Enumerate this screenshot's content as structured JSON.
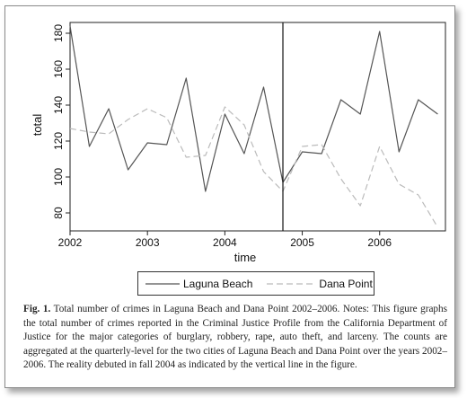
{
  "chart_data": {
    "type": "line",
    "xlabel": "time",
    "ylabel": "total",
    "xlim": [
      2002,
      2006.85
    ],
    "ylim": [
      70,
      186
    ],
    "x_ticks": [
      2002,
      2003,
      2004,
      2005,
      2006
    ],
    "y_ticks": [
      80,
      100,
      120,
      140,
      160,
      180
    ],
    "vertical_line_at": 2004.75,
    "legend_position": "bottom-center",
    "series": [
      {
        "name": "Laguna Beach",
        "style": "solid",
        "color": "#555555",
        "x": [
          2002,
          2002.25,
          2002.5,
          2002.75,
          2003,
          2003.25,
          2003.5,
          2003.75,
          2004,
          2004.25,
          2004.5,
          2004.75,
          2005,
          2005.25,
          2005.5,
          2005.75,
          2006,
          2006.25,
          2006.5,
          2006.75
        ],
        "values": [
          184,
          117,
          138,
          104,
          119,
          118,
          155,
          92,
          135,
          113,
          150,
          97,
          114,
          113,
          143,
          135,
          181,
          114,
          143,
          135
        ]
      },
      {
        "name": "Dana Point",
        "style": "dashed",
        "color": "#bbbbbb",
        "x": [
          2002,
          2002.25,
          2002.5,
          2002.75,
          2003,
          2003.25,
          2003.5,
          2003.75,
          2004,
          2004.25,
          2004.5,
          2004.75,
          2005,
          2005.25,
          2005.5,
          2005.75,
          2006,
          2006.25,
          2006.5,
          2006.75
        ],
        "values": [
          127,
          125,
          124,
          132,
          138,
          133,
          111,
          112,
          139,
          129,
          103,
          92,
          117,
          118,
          99,
          84,
          117,
          96,
          90,
          72
        ]
      }
    ]
  },
  "caption": {
    "fig_label": "Fig. 1.",
    "text": "Total number of crimes in Laguna Beach and Dana Point 2002–2006. Notes: This figure graphs the total number of crimes reported in the Criminal Justice Profile from the California Department of Justice for the major categories of burglary, robbery, rape, auto theft, and larceny. The counts are aggregated at the quarterly-level for the two cities of Laguna Beach and Dana Point over the years 2002–2006. The reality debuted in fall 2004 as indicated by the vertical line in the figure."
  }
}
